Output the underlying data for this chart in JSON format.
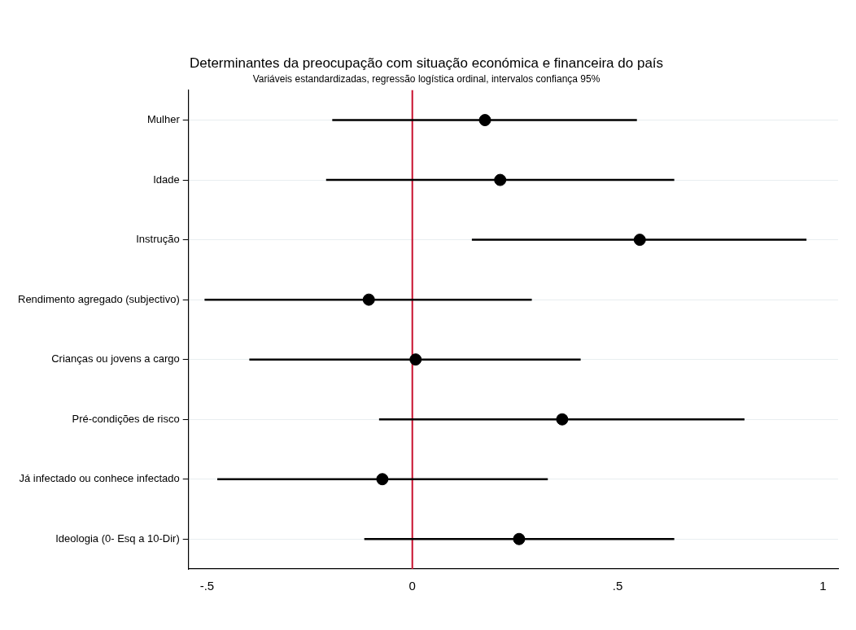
{
  "chart_data": {
    "type": "scatter",
    "orientation": "horizontal",
    "title": "Determinantes da preocupação com situação económica e financeira do país",
    "subtitle": "Variáveis estandardizadas, regressão logística ordinal, intervalos confiança 95%",
    "categories": [
      "Mulher",
      "Idade",
      "Instrução",
      "Rendimento agregado (subjectivo)",
      "Crianças ou jovens a cargo",
      "Pré-condições de risco",
      "Já infectado ou conhece infectado",
      "Ideologia (0- Esq a 10-Dir)"
    ],
    "values": [
      0.177,
      0.214,
      0.554,
      -0.106,
      0.008,
      0.365,
      -0.073,
      0.26
    ],
    "errors": [
      [
        -0.195,
        0.547
      ],
      [
        -0.21,
        0.638
      ],
      [
        0.145,
        0.96
      ],
      [
        -0.506,
        0.291
      ],
      [
        -0.397,
        0.41
      ],
      [
        -0.081,
        0.809
      ],
      [
        -0.475,
        0.33
      ],
      [
        -0.117,
        0.638
      ]
    ],
    "color": "#000000",
    "marker": "circle",
    "xlim": [
      -0.545,
      1.037
    ],
    "xticks": [
      {
        "value": -0.5,
        "label": "-.5"
      },
      0,
      {
        "value": 0.5,
        "label": ".5"
      },
      1
    ],
    "ref_lines": [
      {
        "axis": "x",
        "value": 0,
        "color": "#c8102e"
      }
    ],
    "grid": "y"
  }
}
